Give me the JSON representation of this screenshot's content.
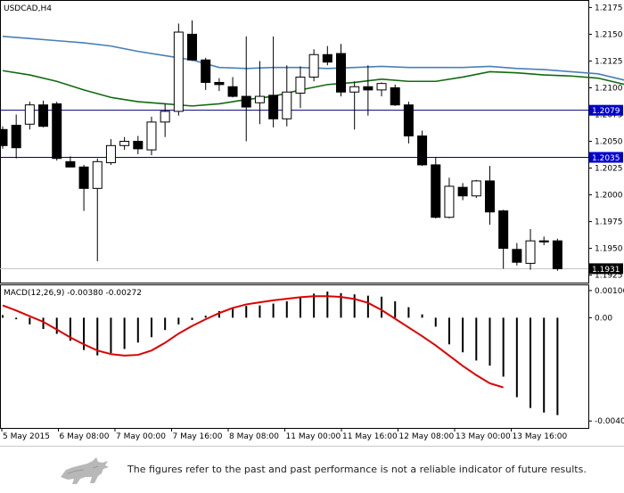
{
  "chart_data": {
    "type": "candlestick",
    "symbol_label": "USDCAD,H4",
    "ylim": [
      1.1918,
      1.2182
    ],
    "yticks": [
      "1.2175",
      "1.2150",
      "1.2125",
      "1.2100",
      "1.2075",
      "1.2050",
      "1.2025",
      "1.2000",
      "1.1975",
      "1.1950",
      "1.1925"
    ],
    "xlabels": [
      "5 May 2015",
      "6 May 08:00",
      "7 May 00:00",
      "7 May 16:00",
      "8 May 08:00",
      "11 May 00:00",
      "11 May 16:00",
      "12 May 08:00",
      "13 May 00:00",
      "13 May 16:00"
    ],
    "hlines": [
      {
        "value": 1.2079,
        "label": "1.2079",
        "color": "#000080"
      },
      {
        "value": 1.2035,
        "label": "1.2035",
        "color": "#000080"
      }
    ],
    "last_price": {
      "value": 1.1931,
      "label": "1.1931"
    },
    "candles": [
      [
        1.2061,
        1.2064,
        1.2043,
        1.2046
      ],
      [
        1.2065,
        1.2075,
        1.2034,
        1.2044
      ],
      [
        1.2066,
        1.2087,
        1.2061,
        1.2084
      ],
      [
        1.2084,
        1.2088,
        1.2063,
        1.2064
      ],
      [
        1.2085,
        1.2087,
        1.2032,
        1.2034
      ],
      [
        1.2031,
        1.2036,
        1.2026,
        1.2026
      ],
      [
        1.2026,
        1.2028,
        1.1985,
        1.2006
      ],
      [
        1.2006,
        1.2034,
        1.1938,
        1.2031
      ],
      [
        1.203,
        1.2052,
        1.2028,
        1.2046
      ],
      [
        1.2046,
        1.2054,
        1.2042,
        1.205
      ],
      [
        1.205,
        1.2055,
        1.2038,
        1.2043
      ],
      [
        1.2042,
        1.2073,
        1.2037,
        1.2068
      ],
      [
        1.2068,
        1.2085,
        1.2054,
        1.2078
      ],
      [
        1.2078,
        1.216,
        1.2074,
        1.2152
      ],
      [
        1.215,
        1.2163,
        1.2125,
        1.2126
      ],
      [
        1.2126,
        1.2128,
        1.2098,
        1.2105
      ],
      [
        1.2105,
        1.2109,
        1.2097,
        1.2103
      ],
      [
        1.2101,
        1.211,
        1.2091,
        1.2092
      ],
      [
        1.2092,
        1.2148,
        1.205,
        1.2082
      ],
      [
        1.2086,
        1.2125,
        1.2066,
        1.2092
      ],
      [
        1.2093,
        1.2148,
        1.2063,
        1.2071
      ],
      [
        1.2071,
        1.2121,
        1.2064,
        1.2096
      ],
      [
        1.2095,
        1.212,
        1.2081,
        1.211
      ],
      [
        1.211,
        1.2136,
        1.2106,
        1.2131
      ],
      [
        1.2131,
        1.2139,
        1.2121,
        1.2124
      ],
      [
        1.2132,
        1.2141,
        1.2092,
        1.2096
      ],
      [
        1.2096,
        1.2106,
        1.2061,
        1.2101
      ],
      [
        1.2101,
        1.2121,
        1.2074,
        1.2098
      ],
      [
        1.2098,
        1.2105,
        1.2092,
        1.2104
      ],
      [
        1.21,
        1.2103,
        1.2083,
        1.2084
      ],
      [
        1.2084,
        1.2087,
        1.2048,
        1.2055
      ],
      [
        1.2055,
        1.206,
        1.2027,
        1.2028
      ],
      [
        1.2028,
        1.2035,
        1.1978,
        1.1979
      ],
      [
        1.1979,
        1.2016,
        1.1978,
        1.2008
      ],
      [
        1.2007,
        1.2011,
        1.1995,
        1.1999
      ],
      [
        1.1999,
        1.2014,
        1.1997,
        1.2013
      ],
      [
        1.2013,
        1.2027,
        1.1972,
        1.1984
      ],
      [
        1.1985,
        1.1986,
        1.1931,
        1.195
      ],
      [
        1.1949,
        1.1955,
        1.1934,
        1.1937
      ],
      [
        1.1936,
        1.1968,
        1.193,
        1.1957
      ],
      [
        1.1957,
        1.1961,
        1.1953,
        1.1956
      ],
      [
        1.1957,
        1.1959,
        1.1929,
        1.1931
      ]
    ],
    "ma_blue": [
      [
        0,
        1.2148
      ],
      [
        2,
        1.2146
      ],
      [
        4,
        1.2144
      ],
      [
        6,
        1.2142
      ],
      [
        8,
        1.2139
      ],
      [
        10,
        1.2134
      ],
      [
        12,
        1.213
      ],
      [
        14,
        1.2126
      ],
      [
        16,
        1.2119
      ],
      [
        18,
        1.2118
      ],
      [
        20,
        1.2119
      ],
      [
        22,
        1.2119
      ],
      [
        24,
        1.2118
      ],
      [
        26,
        1.2119
      ],
      [
        28,
        1.212
      ],
      [
        30,
        1.2119
      ],
      [
        32,
        1.2119
      ],
      [
        34,
        1.2119
      ],
      [
        36,
        1.212
      ],
      [
        38,
        1.2118
      ],
      [
        40,
        1.2117
      ],
      [
        42,
        1.2115
      ],
      [
        44,
        1.2113
      ],
      [
        46,
        1.2107
      ],
      [
        48,
        1.2099
      ],
      [
        50,
        1.209
      ],
      [
        52,
        1.2079
      ]
    ],
    "ma_green": [
      [
        0,
        1.2116
      ],
      [
        2,
        1.2112
      ],
      [
        4,
        1.2106
      ],
      [
        6,
        1.2098
      ],
      [
        8,
        1.2091
      ],
      [
        10,
        1.2087
      ],
      [
        12,
        1.2085
      ],
      [
        14,
        1.2083
      ],
      [
        16,
        1.2085
      ],
      [
        18,
        1.2089
      ],
      [
        20,
        1.2092
      ],
      [
        22,
        1.2098
      ],
      [
        24,
        1.2103
      ],
      [
        26,
        1.2105
      ],
      [
        28,
        1.2108
      ],
      [
        30,
        1.2106
      ],
      [
        32,
        1.2106
      ],
      [
        34,
        1.211
      ],
      [
        36,
        1.2115
      ],
      [
        38,
        1.2114
      ],
      [
        40,
        1.2112
      ],
      [
        42,
        1.2111
      ],
      [
        44,
        1.2109
      ],
      [
        46,
        1.2103
      ],
      [
        48,
        1.2095
      ],
      [
        50,
        1.2085
      ],
      [
        52,
        1.2076
      ],
      [
        54,
        1.2066
      ],
      [
        56,
        1.2053
      ],
      [
        58,
        1.2042
      ],
      [
        60,
        1.2035
      ]
    ],
    "macd": {
      "label": "MACD(12,26,9) -0.00380 -0.00272",
      "ylim": [
        -0.0043,
        0.0013
      ],
      "yticks": [
        {
          "value": 0.00106,
          "label": "0.00106"
        },
        {
          "value": 0.0,
          "label": "0.00"
        },
        {
          "value": -0.00403,
          "label": "-0.00403"
        }
      ],
      "histogram": [
        0.0001,
        -6e-05,
        -0.00026,
        -0.00044,
        -0.00063,
        -0.0009,
        -0.00126,
        -0.00147,
        -0.00138,
        -0.00122,
        -0.00097,
        -0.00076,
        -0.00048,
        -0.00026,
        -9e-05,
        8e-05,
        0.00026,
        0.0004,
        0.00046,
        0.00048,
        0.00055,
        0.00064,
        0.0008,
        0.00094,
        0.00102,
        0.00096,
        0.00091,
        0.00086,
        0.00082,
        0.00064,
        0.00041,
        0.00013,
        -0.00035,
        -0.00104,
        -0.00135,
        -0.00167,
        -0.00187,
        -0.0023,
        -0.0031,
        -0.00352,
        -0.0037,
        -0.0038
      ],
      "signal": [
        [
          0,
          0.00048
        ],
        [
          2,
          0.00028
        ],
        [
          4,
          6e-05
        ],
        [
          6,
          -0.00016
        ],
        [
          8,
          -0.00046
        ],
        [
          10,
          -0.00077
        ],
        [
          12,
          -0.00104
        ],
        [
          14,
          -0.00128
        ],
        [
          16,
          -0.00142
        ],
        [
          18,
          -0.00148
        ],
        [
          20,
          -0.00145
        ],
        [
          22,
          -0.00128
        ],
        [
          24,
          -0.00098
        ],
        [
          26,
          -0.00062
        ],
        [
          28,
          -0.00032
        ],
        [
          30,
          -6e-05
        ],
        [
          32,
          0.00018
        ],
        [
          34,
          0.00038
        ],
        [
          36,
          0.00052
        ],
        [
          38,
          0.0006
        ],
        [
          40,
          0.00068
        ],
        [
          42,
          0.00074
        ],
        [
          44,
          0.0008
        ],
        [
          46,
          0.00084
        ],
        [
          48,
          0.00084
        ],
        [
          50,
          0.00081
        ],
        [
          52,
          0.00073
        ],
        [
          54,
          0.00058
        ],
        [
          56,
          0.0003
        ],
        [
          58,
          -4e-05
        ],
        [
          60,
          -0.00038
        ],
        [
          62,
          -0.00072
        ],
        [
          64,
          -0.00108
        ],
        [
          66,
          -0.00148
        ],
        [
          68,
          -0.00188
        ],
        [
          70,
          -0.00224
        ],
        [
          72,
          -0.00256
        ],
        [
          74,
          -0.00272
        ]
      ]
    }
  },
  "disclaimer": {
    "text": "The figures refer to the past and past performance is not a reliable indicator of future results."
  },
  "colors": {
    "bull_fill": "#ffffff",
    "bear_fill": "#000000",
    "ma_blue": "#4a7fb6",
    "ma_green": "#106a10",
    "macd_signal": "#dd0000",
    "hline": "#000080",
    "price_label_bg": "#0000cc"
  }
}
